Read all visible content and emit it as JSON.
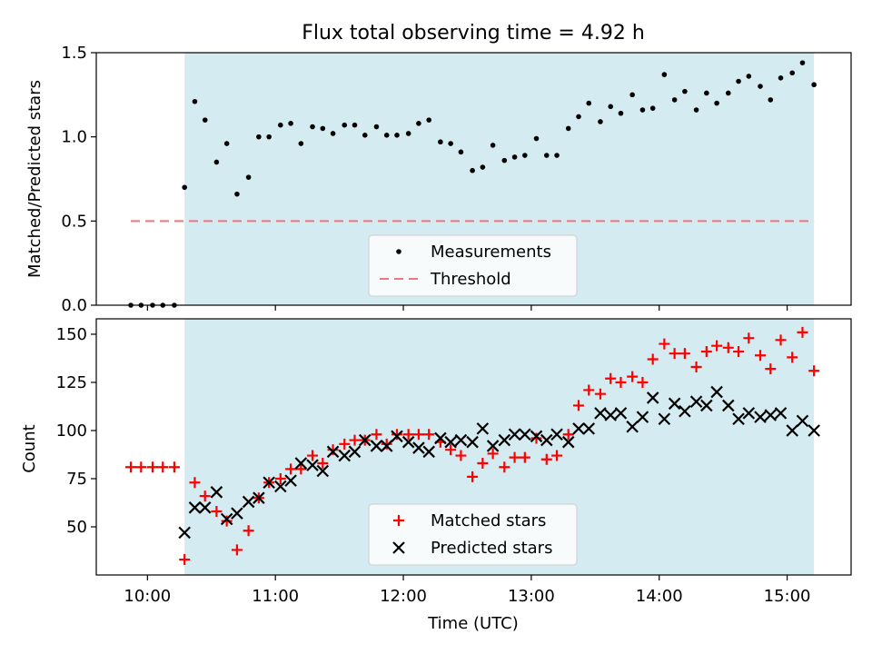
{
  "chart_data": [
    {
      "type": "scatter",
      "title": "Flux total observing time = 4.92 h",
      "xlabel": "",
      "ylabel": "Matched/Predicted stars",
      "xlim": [
        -0.4,
        5.5
      ],
      "ylim": [
        0.0,
        1.5
      ],
      "yticks": [
        0.0,
        0.5,
        1.0,
        1.5
      ],
      "yticklabels": [
        "0.0",
        "0.5",
        "1.0",
        "1.5"
      ],
      "shaded_range": [
        0.29,
        5.21
      ],
      "shade_color": "#d4ebf1",
      "legend_position": "lower-center",
      "series": [
        {
          "name": "Measurements",
          "marker": "dot",
          "color": "#000000",
          "x": [
            -0.13,
            -0.05,
            0.04,
            0.12,
            0.21,
            0.29,
            0.37,
            0.45,
            0.54,
            0.62,
            0.7,
            0.79,
            0.87,
            0.95,
            1.04,
            1.12,
            1.2,
            1.29,
            1.37,
            1.45,
            1.54,
            1.62,
            1.7,
            1.79,
            1.87,
            1.95,
            2.04,
            2.12,
            2.2,
            2.29,
            2.37,
            2.45,
            2.54,
            2.62,
            2.7,
            2.79,
            2.87,
            2.95,
            3.04,
            3.12,
            3.2,
            3.29,
            3.37,
            3.45,
            3.54,
            3.62,
            3.7,
            3.79,
            3.87,
            3.95,
            4.04,
            4.12,
            4.2,
            4.29,
            4.37,
            4.45,
            4.54,
            4.62,
            4.7,
            4.79,
            4.87,
            4.95,
            5.04,
            5.12,
            5.21
          ],
          "y": [
            0,
            0,
            0,
            0,
            0,
            0.7,
            1.21,
            1.1,
            0.85,
            0.96,
            0.66,
            0.76,
            1.0,
            1.0,
            1.07,
            1.08,
            0.96,
            1.06,
            1.05,
            1.02,
            1.07,
            1.07,
            1.01,
            1.06,
            1.01,
            1.01,
            1.02,
            1.08,
            1.1,
            0.97,
            0.96,
            0.91,
            0.8,
            0.82,
            0.95,
            0.86,
            0.88,
            0.89,
            0.99,
            0.89,
            0.89,
            1.05,
            1.12,
            1.2,
            1.09,
            1.18,
            1.14,
            1.25,
            1.16,
            1.17,
            1.37,
            1.22,
            1.27,
            1.16,
            1.26,
            1.2,
            1.26,
            1.33,
            1.36,
            1.3,
            1.22,
            1.35,
            1.38,
            1.44,
            1.31
          ]
        },
        {
          "name": "Threshold",
          "marker": "dashed-line",
          "color": "#ef7777",
          "x": [
            -0.13,
            5.21
          ],
          "y": [
            0.5,
            0.5
          ]
        }
      ]
    },
    {
      "type": "scatter",
      "title": "",
      "xlabel": "Time (UTC)",
      "ylabel": "Count",
      "xlim": [
        -0.4,
        5.5
      ],
      "ylim": [
        25,
        158
      ],
      "yticks": [
        50,
        75,
        100,
        125,
        150
      ],
      "yticklabels": [
        "50",
        "75",
        "100",
        "125",
        "150"
      ],
      "xticks": [
        0,
        1,
        2,
        3,
        4,
        5
      ],
      "xticklabels": [
        "10:00",
        "11:00",
        "12:00",
        "13:00",
        "14:00",
        "15:00"
      ],
      "shaded_range": [
        0.29,
        5.21
      ],
      "shade_color": "#d4ebf1",
      "legend_position": "lower-center",
      "series": [
        {
          "name": "Matched stars",
          "marker": "plus",
          "color": "#ff0000",
          "x": [
            -0.13,
            -0.05,
            0.04,
            0.12,
            0.21,
            0.29,
            0.37,
            0.45,
            0.54,
            0.62,
            0.7,
            0.79,
            0.87,
            0.95,
            1.04,
            1.12,
            1.2,
            1.29,
            1.37,
            1.45,
            1.54,
            1.62,
            1.7,
            1.79,
            1.87,
            1.95,
            2.04,
            2.12,
            2.2,
            2.29,
            2.37,
            2.45,
            2.54,
            2.62,
            2.7,
            2.79,
            2.87,
            2.95,
            3.04,
            3.12,
            3.2,
            3.29,
            3.37,
            3.45,
            3.54,
            3.62,
            3.7,
            3.79,
            3.87,
            3.95,
            4.04,
            4.12,
            4.2,
            4.29,
            4.37,
            4.45,
            4.54,
            4.62,
            4.7,
            4.79,
            4.87,
            4.95,
            5.04,
            5.12,
            5.21
          ],
          "y": [
            81,
            81,
            81,
            81,
            81,
            33,
            73,
            66,
            58,
            53,
            38,
            48,
            65,
            73,
            75,
            80,
            80,
            87,
            83,
            90,
            93,
            95,
            95,
            98,
            93,
            98,
            98,
            98,
            98,
            94,
            90,
            87,
            76,
            83,
            88,
            81,
            86,
            86,
            96,
            85,
            87,
            98,
            113,
            121,
            119,
            127,
            125,
            128,
            125,
            137,
            145,
            140,
            140,
            133,
            141,
            144,
            143,
            141,
            148,
            139,
            132,
            147,
            138,
            151,
            131
          ]
        },
        {
          "name": "Predicted stars",
          "marker": "x",
          "color": "#000000",
          "x": [
            0.29,
            0.37,
            0.45,
            0.54,
            0.62,
            0.7,
            0.79,
            0.87,
            0.95,
            1.04,
            1.12,
            1.2,
            1.29,
            1.37,
            1.45,
            1.54,
            1.62,
            1.7,
            1.79,
            1.87,
            1.95,
            2.04,
            2.12,
            2.2,
            2.29,
            2.37,
            2.45,
            2.54,
            2.62,
            2.7,
            2.79,
            2.87,
            2.95,
            3.04,
            3.12,
            3.2,
            3.29,
            3.37,
            3.45,
            3.54,
            3.62,
            3.7,
            3.79,
            3.87,
            3.95,
            4.04,
            4.12,
            4.2,
            4.29,
            4.37,
            4.45,
            4.54,
            4.62,
            4.7,
            4.79,
            4.87,
            4.95,
            5.04,
            5.12,
            5.21
          ],
          "y": [
            47,
            60,
            60,
            68,
            54,
            57,
            63,
            65,
            73,
            71,
            74,
            83,
            82,
            79,
            89,
            87,
            89,
            95,
            92,
            92,
            97,
            94,
            91,
            89,
            96,
            94,
            95,
            94,
            101,
            92,
            95,
            98,
            98,
            97,
            95,
            98,
            94,
            101,
            101,
            109,
            108,
            109,
            102,
            107,
            117,
            106,
            114,
            110,
            115,
            113,
            120,
            113,
            106,
            109,
            107,
            108,
            109,
            100,
            105,
            100
          ]
        }
      ]
    }
  ]
}
